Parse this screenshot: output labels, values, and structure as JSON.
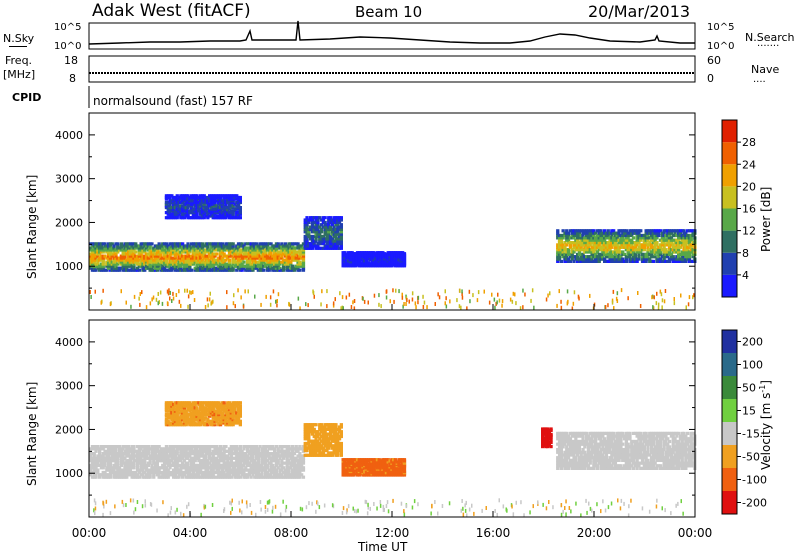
{
  "header": {
    "station": "Adak West (fitACF)",
    "beam": "Beam 10",
    "date": "20/Mar/2013"
  },
  "noise_panel": {
    "left_label": "N.Sky",
    "right_label": "N.Search",
    "left_ticks": [
      "10^5",
      "10^0"
    ],
    "right_ticks": [
      "10^5",
      "10^0"
    ]
  },
  "freq_panel": {
    "left_label_line1": "Freq.",
    "left_label_line2": "[MHz]",
    "right_label": "Nave",
    "left_ticks": [
      "18",
      "8"
    ],
    "right_ticks": [
      "60",
      "0"
    ]
  },
  "cpid_panel": {
    "label": "CPID",
    "program": "normalsound (fast) 157 RF"
  },
  "power_panel": {
    "ylabel": "Slant Range [km]",
    "yticks": [
      "1000",
      "2000",
      "3000",
      "4000"
    ],
    "colorbar_label": "Power [dB]",
    "colorbar_ticks": [
      "4",
      "8",
      "12",
      "16",
      "20",
      "24",
      "28"
    ],
    "colors": [
      "#1a1aff",
      "#2040b0",
      "#2f6f62",
      "#58a848",
      "#c8c020",
      "#f0a000",
      "#f06000",
      "#e02000"
    ]
  },
  "velocity_panel": {
    "ylabel": "Slant Range [km]",
    "yticks": [
      "1000",
      "2000",
      "3000",
      "4000"
    ],
    "colorbar_label": "Velocity [m s",
    "colorbar_label_sup": "-1",
    "colorbar_label_end": "]",
    "colorbar_ticks": [
      "200",
      "100",
      "50",
      "15",
      "-15",
      "-50",
      "-100",
      "-200"
    ],
    "colors": [
      "#2030a0",
      "#2a6a8a",
      "#3a8a3a",
      "#70d040",
      "#c8c8c8",
      "#f0a020",
      "#f06010",
      "#e01010"
    ]
  },
  "time_axis": {
    "xlabel": "Time UT",
    "ticks": [
      "00:00",
      "04:00",
      "08:00",
      "12:00",
      "16:00",
      "20:00",
      "00:00"
    ]
  },
  "chart_data": {
    "type": "heatmap",
    "title": "Adak West (fitACF)",
    "x_unit": "hours UT",
    "xlim": [
      0,
      24
    ],
    "y_unit": "km",
    "ylim": [
      0,
      4500
    ],
    "power_bands": [
      {
        "t_start": 0,
        "t_end": 8.5,
        "r_low": 900,
        "r_high": 1500,
        "peak_db": 28
      },
      {
        "t_start": 8.5,
        "t_end": 10,
        "r_low": 1400,
        "r_high": 2100,
        "peak_db": 14
      },
      {
        "t_start": 3,
        "t_end": 6,
        "r_low": 2100,
        "r_high": 2600,
        "peak_db": 10
      },
      {
        "t_start": 10,
        "t_end": 12.5,
        "r_low": 1000,
        "r_high": 1300,
        "peak_db": 6
      },
      {
        "t_start": 18.5,
        "t_end": 24,
        "r_low": 1100,
        "r_high": 1800,
        "peak_db": 24
      }
    ],
    "velocity_bands": [
      {
        "t_start": 0,
        "t_end": 8.5,
        "r_low": 900,
        "r_high": 1600,
        "velocity": 0
      },
      {
        "t_start": 8.5,
        "t_end": 10,
        "r_low": 1400,
        "r_high": 2100,
        "velocity": -30
      },
      {
        "t_start": 3,
        "t_end": 6,
        "r_low": 2100,
        "r_high": 2600,
        "velocity": -40
      },
      {
        "t_start": 10,
        "t_end": 12.5,
        "r_low": 950,
        "r_high": 1300,
        "velocity": -60
      },
      {
        "t_start": 17.9,
        "t_end": 18.3,
        "r_low": 1600,
        "r_high": 2000,
        "velocity": -200
      },
      {
        "t_start": 18.5,
        "t_end": 24,
        "r_low": 1100,
        "r_high": 1900,
        "velocity": 0
      }
    ]
  }
}
